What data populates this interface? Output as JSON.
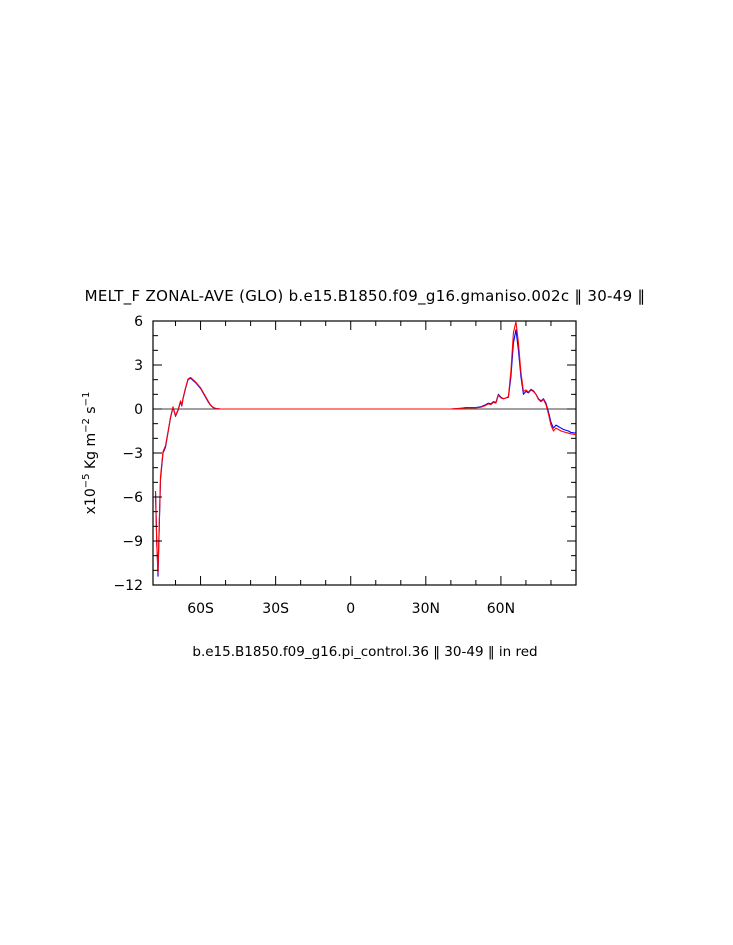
{
  "chart_data": {
    "type": "line",
    "title": "MELT_F ZONAL-AVE (GLO) b.e15.B1850.f09_g16.gmaniso.002c ‖ 30-49 ‖",
    "ylabel": {
      "prefix": "x10",
      "exp1": "−5",
      "unit_a": " Kg m",
      "exp2": "−2",
      "unit_b": " s",
      "exp3": "−1"
    },
    "caption": "b.e15.B1850.f09_g16.pi_control.36 ‖ 30-49 ‖ in red",
    "xlim": [
      -79,
      90
    ],
    "ylim": [
      -12,
      6
    ],
    "x_ticks": [
      {
        "value": -60,
        "label": "60S"
      },
      {
        "value": -30,
        "label": "30S"
      },
      {
        "value": 0,
        "label": "0"
      },
      {
        "value": 30,
        "label": "30N"
      },
      {
        "value": 60,
        "label": "60N"
      }
    ],
    "y_ticks": [
      {
        "value": 6,
        "label": "6"
      },
      {
        "value": 3,
        "label": "3"
      },
      {
        "value": 0,
        "label": "0"
      },
      {
        "value": -3,
        "label": "−3"
      },
      {
        "value": -6,
        "label": "−6"
      },
      {
        "value": -9,
        "label": "−9"
      },
      {
        "value": -12,
        "label": "−12"
      }
    ],
    "zero_line": true,
    "series": [
      {
        "color": "#0000ff",
        "points": [
          [
            -78,
            -5.6
          ],
          [
            -77.5,
            -9
          ],
          [
            -77,
            -11.4
          ],
          [
            -76.5,
            -8
          ],
          [
            -76,
            -4.8
          ],
          [
            -75,
            -3
          ],
          [
            -74,
            -2.6
          ],
          [
            -73,
            -1.6
          ],
          [
            -72,
            -0.6
          ],
          [
            -71,
            0.1
          ],
          [
            -70,
            -0.5
          ],
          [
            -69,
            -0.1
          ],
          [
            -68,
            0.5
          ],
          [
            -67.5,
            0.2
          ],
          [
            -67,
            0.7
          ],
          [
            -66,
            1.4
          ],
          [
            -65,
            2.0
          ],
          [
            -64,
            2.1
          ],
          [
            -63,
            1.95
          ],
          [
            -62,
            1.8
          ],
          [
            -61,
            1.6
          ],
          [
            -60,
            1.4
          ],
          [
            -59,
            1.1
          ],
          [
            -58,
            0.8
          ],
          [
            -57,
            0.5
          ],
          [
            -56,
            0.25
          ],
          [
            -55,
            0.1
          ],
          [
            -54,
            0.03
          ],
          [
            -52,
            0
          ],
          [
            -40,
            0
          ],
          [
            -20,
            0
          ],
          [
            0,
            0
          ],
          [
            20,
            0
          ],
          [
            35,
            0
          ],
          [
            40,
            0
          ],
          [
            44,
            0.05
          ],
          [
            46,
            0.1
          ],
          [
            48,
            0.1
          ],
          [
            50,
            0.1
          ],
          [
            52,
            0.15
          ],
          [
            54,
            0.3
          ],
          [
            55,
            0.4
          ],
          [
            56,
            0.35
          ],
          [
            57,
            0.5
          ],
          [
            58,
            0.45
          ],
          [
            59,
            1.0
          ],
          [
            60,
            0.8
          ],
          [
            61,
            0.7
          ],
          [
            62,
            0.75
          ],
          [
            63,
            0.8
          ],
          [
            64,
            2.2
          ],
          [
            65,
            4.5
          ],
          [
            66,
            5.4
          ],
          [
            67,
            4.0
          ],
          [
            68,
            2.2
          ],
          [
            69,
            1.0
          ],
          [
            70,
            1.2
          ],
          [
            71,
            1.1
          ],
          [
            72,
            1.3
          ],
          [
            73,
            1.2
          ],
          [
            74,
            1.0
          ],
          [
            75,
            0.7
          ],
          [
            76,
            0.55
          ],
          [
            77,
            0.7
          ],
          [
            78,
            0.4
          ],
          [
            79,
            -0.2
          ],
          [
            80,
            -0.9
          ],
          [
            81,
            -1.3
          ],
          [
            82,
            -1.1
          ],
          [
            83,
            -1.2
          ],
          [
            84,
            -1.3
          ],
          [
            85,
            -1.4
          ],
          [
            86,
            -1.45
          ],
          [
            87,
            -1.5
          ],
          [
            88,
            -1.6
          ],
          [
            89,
            -1.62
          ],
          [
            90,
            -1.65
          ]
        ]
      },
      {
        "color": "#ff0000",
        "points": [
          [
            -78,
            -5.6
          ],
          [
            -77.5,
            -9.2
          ],
          [
            -77,
            -11.2
          ],
          [
            -76.5,
            -7.8
          ],
          [
            -76,
            -4.6
          ],
          [
            -75,
            -2.9
          ],
          [
            -74,
            -2.5
          ],
          [
            -73,
            -1.55
          ],
          [
            -72,
            -0.55
          ],
          [
            -71,
            0.15
          ],
          [
            -70,
            -0.45
          ],
          [
            -69,
            -0.05
          ],
          [
            -68,
            0.55
          ],
          [
            -67.5,
            0.25
          ],
          [
            -67,
            0.75
          ],
          [
            -66,
            1.45
          ],
          [
            -65,
            2.05
          ],
          [
            -64,
            2.15
          ],
          [
            -63,
            2.0
          ],
          [
            -62,
            1.85
          ],
          [
            -61,
            1.65
          ],
          [
            -60,
            1.45
          ],
          [
            -59,
            1.15
          ],
          [
            -58,
            0.85
          ],
          [
            -57,
            0.55
          ],
          [
            -56,
            0.28
          ],
          [
            -55,
            0.12
          ],
          [
            -54,
            0.04
          ],
          [
            -52,
            0
          ],
          [
            -40,
            0
          ],
          [
            -20,
            0
          ],
          [
            0,
            0
          ],
          [
            20,
            0
          ],
          [
            35,
            0
          ],
          [
            40,
            0
          ],
          [
            44,
            0.05
          ],
          [
            46,
            0.08
          ],
          [
            48,
            0.08
          ],
          [
            50,
            0.08
          ],
          [
            52,
            0.12
          ],
          [
            54,
            0.25
          ],
          [
            55,
            0.35
          ],
          [
            56,
            0.3
          ],
          [
            57,
            0.45
          ],
          [
            58,
            0.4
          ],
          [
            59,
            0.95
          ],
          [
            60,
            0.75
          ],
          [
            61,
            0.7
          ],
          [
            62,
            0.75
          ],
          [
            63,
            0.85
          ],
          [
            64,
            2.6
          ],
          [
            65,
            5.2
          ],
          [
            66,
            5.95
          ],
          [
            67,
            4.5
          ],
          [
            68,
            2.5
          ],
          [
            69,
            1.2
          ],
          [
            70,
            1.3
          ],
          [
            71,
            1.15
          ],
          [
            72,
            1.35
          ],
          [
            73,
            1.25
          ],
          [
            74,
            1.0
          ],
          [
            75,
            0.65
          ],
          [
            76,
            0.5
          ],
          [
            77,
            0.65
          ],
          [
            78,
            0.3
          ],
          [
            79,
            -0.35
          ],
          [
            80,
            -1.1
          ],
          [
            81,
            -1.5
          ],
          [
            82,
            -1.3
          ],
          [
            83,
            -1.4
          ],
          [
            84,
            -1.5
          ],
          [
            85,
            -1.55
          ],
          [
            86,
            -1.6
          ],
          [
            87,
            -1.65
          ],
          [
            88,
            -1.7
          ],
          [
            89,
            -1.72
          ],
          [
            90,
            -1.75
          ]
        ]
      }
    ]
  }
}
